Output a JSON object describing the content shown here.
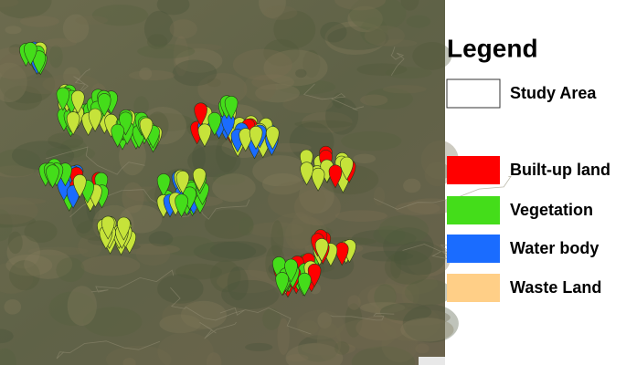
{
  "legend": {
    "title": "Legend",
    "items": [
      {
        "label": "Study Area",
        "color": "#ffffff"
      },
      {
        "label": "Built-up land",
        "color": "#ff0000"
      },
      {
        "label": "Vegetation",
        "color": "#44dd1a"
      },
      {
        "label": "Water body",
        "color": "#1a6cff"
      },
      {
        "label": "Waste Land",
        "color": "#ffcf87"
      }
    ]
  }
}
